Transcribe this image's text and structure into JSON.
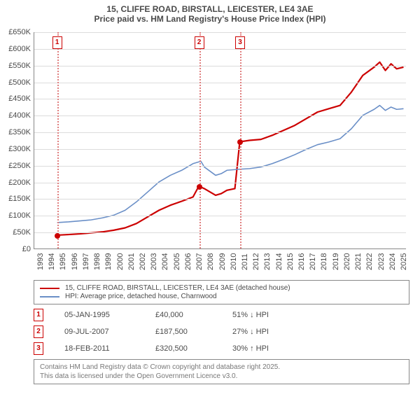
{
  "title_line1": "15, CLIFFE ROAD, BIRSTALL, LEICESTER, LE4 3AE",
  "title_line2": "Price paid vs. HM Land Registry's House Price Index (HPI)",
  "chart": {
    "type": "line",
    "x_axis": {
      "min": 1993,
      "max": 2025.8,
      "ticks": [
        1993,
        1994,
        1995,
        1996,
        1997,
        1998,
        1999,
        2000,
        2001,
        2002,
        2003,
        2004,
        2005,
        2006,
        2007,
        2008,
        2009,
        2010,
        2011,
        2012,
        2013,
        2014,
        2015,
        2016,
        2017,
        2018,
        2019,
        2020,
        2021,
        2022,
        2023,
        2024,
        2025
      ]
    },
    "y_axis": {
      "min": 0,
      "max": 650000,
      "ticks": [
        0,
        50000,
        100000,
        150000,
        200000,
        250000,
        300000,
        350000,
        400000,
        450000,
        500000,
        550000,
        600000,
        650000
      ],
      "tick_labels": [
        "£0",
        "£50K",
        "£100K",
        "£150K",
        "£200K",
        "£250K",
        "£300K",
        "£350K",
        "£400K",
        "£450K",
        "£500K",
        "£550K",
        "£600K",
        "£650K"
      ]
    },
    "grid_color": "#dcdcdc",
    "plot_bg": "#ffffff",
    "series": [
      {
        "name": "15, CLIFFE ROAD, BIRSTALL, LEICESTER, LE4 3AE (detached house)",
        "color": "#cc0000",
        "width": 2.2,
        "points": [
          [
            1995.0,
            40000
          ],
          [
            1996,
            42000
          ],
          [
            1997,
            44000
          ],
          [
            1998,
            47000
          ],
          [
            1999,
            50000
          ],
          [
            2000,
            55000
          ],
          [
            2001,
            62000
          ],
          [
            2002,
            75000
          ],
          [
            2003,
            95000
          ],
          [
            2004,
            115000
          ],
          [
            2005,
            130000
          ],
          [
            2006,
            142000
          ],
          [
            2007.0,
            155000
          ],
          [
            2007.52,
            187500
          ],
          [
            2008,
            180000
          ],
          [
            2009,
            160000
          ],
          [
            2009.5,
            165000
          ],
          [
            2010,
            175000
          ],
          [
            2010.7,
            180000
          ],
          [
            2011.13,
            320500
          ],
          [
            2012,
            325000
          ],
          [
            2013,
            328000
          ],
          [
            2014,
            340000
          ],
          [
            2015,
            355000
          ],
          [
            2016,
            370000
          ],
          [
            2017,
            390000
          ],
          [
            2018,
            410000
          ],
          [
            2019,
            420000
          ],
          [
            2020,
            430000
          ],
          [
            2021,
            470000
          ],
          [
            2022,
            520000
          ],
          [
            2023,
            545000
          ],
          [
            2023.5,
            560000
          ],
          [
            2024,
            535000
          ],
          [
            2024.5,
            555000
          ],
          [
            2025,
            540000
          ],
          [
            2025.6,
            545000
          ]
        ]
      },
      {
        "name": "HPI: Average price, detached house, Charnwood",
        "color": "#6a8fc7",
        "width": 1.6,
        "points": [
          [
            1995,
            78000
          ],
          [
            1996,
            80000
          ],
          [
            1997,
            83000
          ],
          [
            1998,
            86000
          ],
          [
            1999,
            92000
          ],
          [
            2000,
            100000
          ],
          [
            2001,
            115000
          ],
          [
            2002,
            140000
          ],
          [
            2003,
            170000
          ],
          [
            2004,
            200000
          ],
          [
            2005,
            220000
          ],
          [
            2006,
            235000
          ],
          [
            2007,
            255000
          ],
          [
            2007.7,
            262000
          ],
          [
            2008,
            245000
          ],
          [
            2009,
            220000
          ],
          [
            2009.5,
            225000
          ],
          [
            2010,
            235000
          ],
          [
            2011,
            238000
          ],
          [
            2012,
            240000
          ],
          [
            2013,
            245000
          ],
          [
            2014,
            255000
          ],
          [
            2015,
            268000
          ],
          [
            2016,
            282000
          ],
          [
            2017,
            298000
          ],
          [
            2018,
            312000
          ],
          [
            2019,
            320000
          ],
          [
            2020,
            330000
          ],
          [
            2021,
            360000
          ],
          [
            2022,
            400000
          ],
          [
            2023,
            418000
          ],
          [
            2023.5,
            430000
          ],
          [
            2024,
            415000
          ],
          [
            2024.5,
            425000
          ],
          [
            2025,
            418000
          ],
          [
            2025.6,
            420000
          ]
        ]
      }
    ],
    "sale_markers": [
      {
        "n": "1",
        "year": 1995.01
      },
      {
        "n": "2",
        "year": 2007.52
      },
      {
        "n": "3",
        "year": 2011.13
      }
    ],
    "sale_dots": [
      {
        "year": 1995.01,
        "value": 40000
      },
      {
        "year": 2007.52,
        "value": 187500
      },
      {
        "year": 2011.13,
        "value": 320500
      }
    ]
  },
  "legend": {
    "items": [
      {
        "color": "#cc0000",
        "label": "15, CLIFFE ROAD, BIRSTALL, LEICESTER, LE4 3AE (detached house)"
      },
      {
        "color": "#6a8fc7",
        "label": "HPI: Average price, detached house, Charnwood"
      }
    ]
  },
  "sales": [
    {
      "n": "1",
      "date": "05-JAN-1995",
      "price": "£40,000",
      "diff": "51% ↓ HPI"
    },
    {
      "n": "2",
      "date": "09-JUL-2007",
      "price": "£187,500",
      "diff": "27% ↓ HPI"
    },
    {
      "n": "3",
      "date": "18-FEB-2011",
      "price": "£320,500",
      "diff": "30% ↑ HPI"
    }
  ],
  "footer_line1": "Contains HM Land Registry data © Crown copyright and database right 2025.",
  "footer_line2": "This data is licensed under the Open Government Licence v3.0."
}
